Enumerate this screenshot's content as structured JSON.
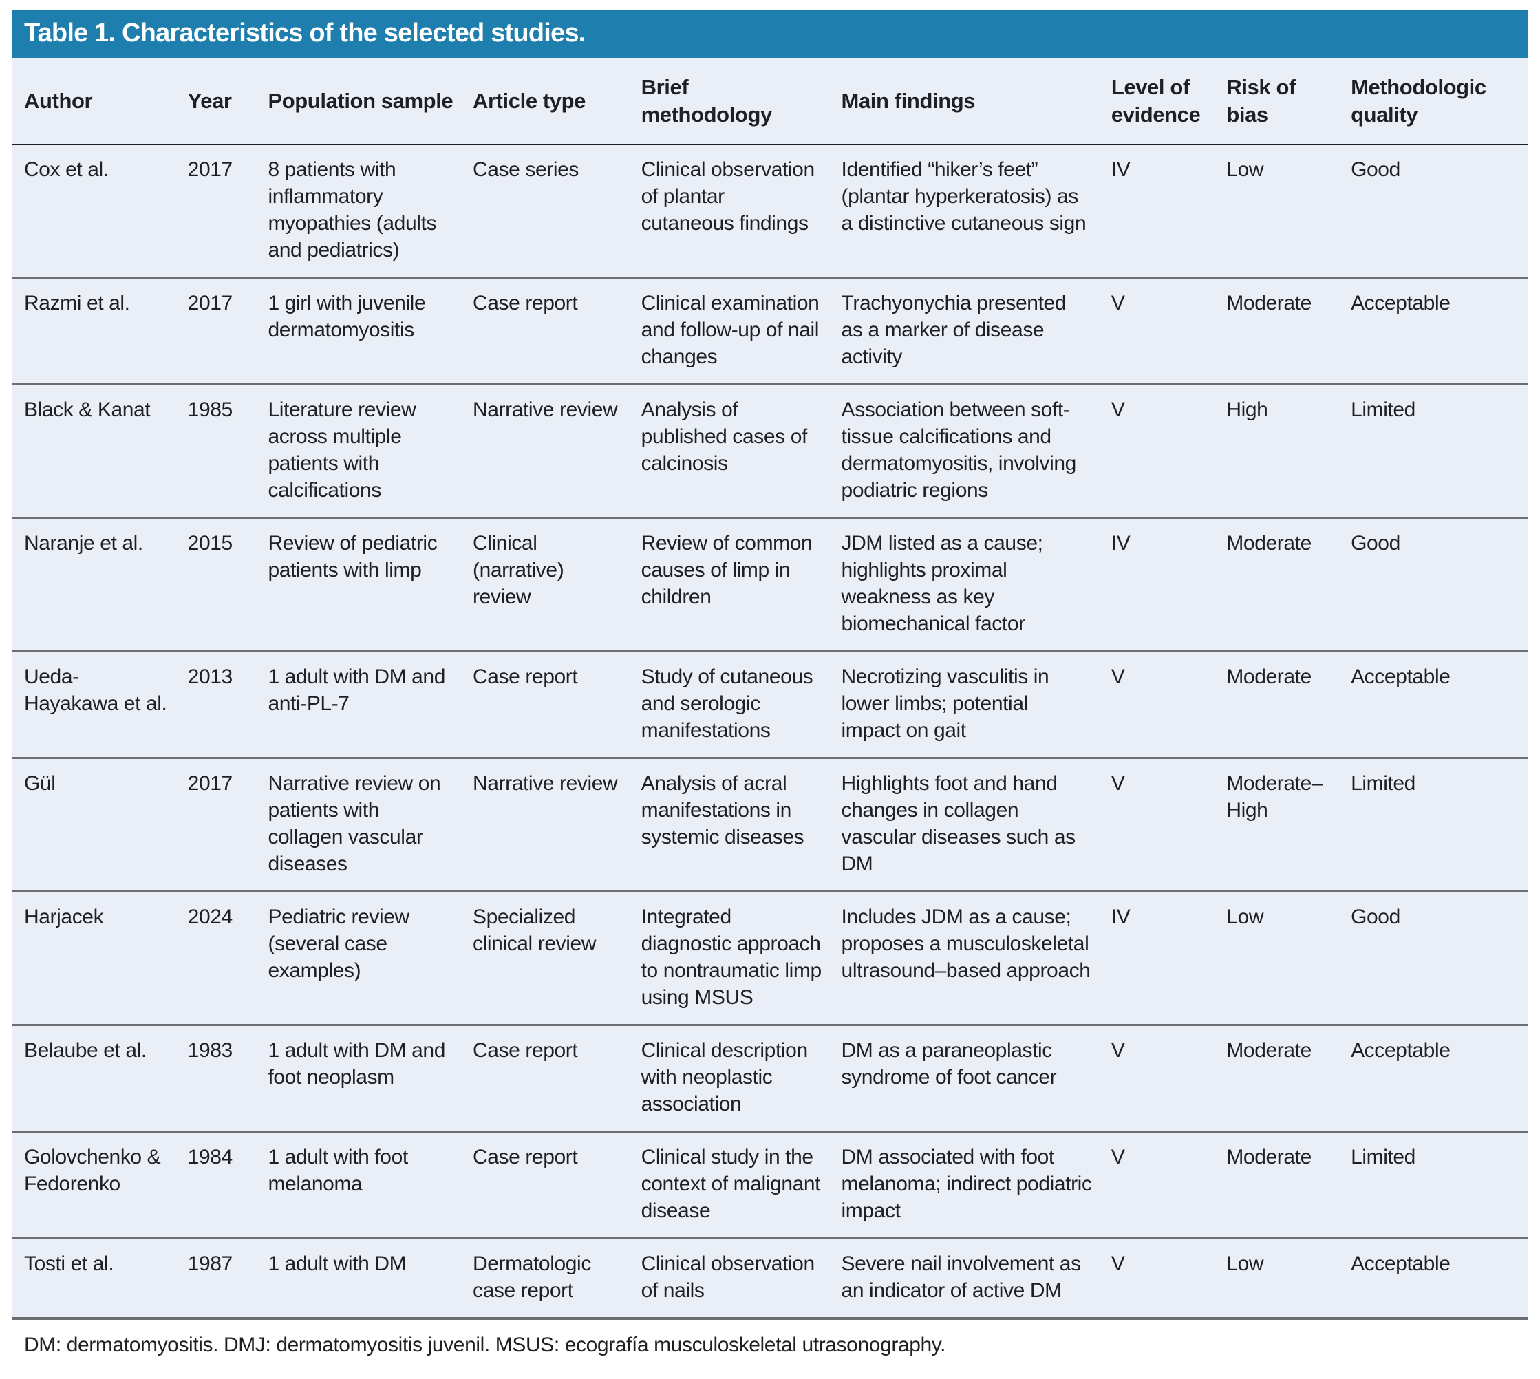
{
  "title": "Table 1. Characteristics of the selected studies.",
  "colors": {
    "title_bar_bg": "#1e7ead",
    "title_text": "#ffffff",
    "table_bg": "#e9eef7",
    "text": "#1f2023",
    "row_divider": "#6d6e71",
    "header_divider": "#231f20"
  },
  "table": {
    "columns": [
      "Author",
      "Year",
      "Population sample",
      "Article type",
      "Brief methodology",
      "Main findings",
      "Level of evidence",
      "Risk of bias",
      "Methodologic quality"
    ],
    "rows": [
      {
        "author": "Cox et al.",
        "year": "2017",
        "population": "8 patients with inflammatory myopathies (adults and pediatrics)",
        "article_type": "Case series",
        "methodology": "Clinical observation of plantar cutaneous findings",
        "findings": "Identified “hiker’s feet” (plantar hyperkeratosis) as a distinctive cutaneous sign",
        "evidence": "IV",
        "bias": "Low",
        "quality": "Good"
      },
      {
        "author": "Razmi et al.",
        "year": "2017",
        "population": "1 girl with juvenile dermatomyositis",
        "article_type": "Case report",
        "methodology": "Clinical examination and follow-up of nail changes",
        "findings": "Trachyonychia presented as a marker of disease activity",
        "evidence": "V",
        "bias": "Moderate",
        "quality": "Acceptable"
      },
      {
        "author": "Black & Kanat",
        "year": "1985",
        "population": "Literature review across multiple patients with calcifications",
        "article_type": "Narrative review",
        "methodology": "Analysis of published cases of calcinosis",
        "findings": "Association between soft-tissue calcifications and dermatomyositis, involving podiatric regions",
        "evidence": "V",
        "bias": "High",
        "quality": "Limited"
      },
      {
        "author": "Naranje et al.",
        "year": "2015",
        "population": "Review of pediatric patients with limp",
        "article_type": "Clinical (narrative) review",
        "methodology": "Review of common causes of limp in children",
        "findings": "JDM listed as a cause; highlights proximal weakness as key biomechanical factor",
        "evidence": "IV",
        "bias": "Moderate",
        "quality": "Good"
      },
      {
        "author": "Ueda-Hayakawa et al.",
        "year": "2013",
        "population": "1 adult with DM and anti-PL-7",
        "article_type": "Case report",
        "methodology": "Study of cutaneous and serologic manifestations",
        "findings": "Necrotizing vasculitis in lower limbs; potential impact on gait",
        "evidence": "V",
        "bias": "Moderate",
        "quality": "Acceptable"
      },
      {
        "author": "Gül",
        "year": "2017",
        "population": "Narrative review on patients with collagen vascular diseases",
        "article_type": "Narrative review",
        "methodology": "Analysis of acral manifestations in systemic diseases",
        "findings": "Highlights foot and hand changes in collagen vascular diseases such as DM",
        "evidence": "V",
        "bias": "Moderate–High",
        "quality": "Limited"
      },
      {
        "author": "Harjacek",
        "year": "2024",
        "population": "Pediatric review (several case examples)",
        "article_type": "Specialized clinical review",
        "methodology": "Integrated diagnostic approach to nontraumatic limp using MSUS",
        "findings": "Includes JDM as a cause; proposes a musculoskeletal ultrasound–based approach",
        "evidence": "IV",
        "bias": "Low",
        "quality": "Good"
      },
      {
        "author": "Belaube et al.",
        "year": "1983",
        "population": "1 adult with DM and foot neoplasm",
        "article_type": "Case report",
        "methodology": "Clinical description with neoplastic association",
        "findings": "DM as a paraneoplastic syndrome of foot cancer",
        "evidence": "V",
        "bias": "Moderate",
        "quality": "Acceptable"
      },
      {
        "author": "Golovchenko & Fedorenko",
        "year": "1984",
        "population": "1 adult with foot melanoma",
        "article_type": "Case report",
        "methodology": "Clinical study in the context of malignant disease",
        "findings": "DM associated with foot melanoma; indirect podiatric impact",
        "evidence": "V",
        "bias": "Moderate",
        "quality": "Limited"
      },
      {
        "author": "Tosti et al.",
        "year": "1987",
        "population": "1 adult with DM",
        "article_type": "Dermatologic case report",
        "methodology": "Clinical observation of nails",
        "findings": "Severe nail involvement as an indicator of active DM",
        "evidence": "V",
        "bias": "Low",
        "quality": "Acceptable"
      }
    ]
  },
  "footnote": "DM: dermatomyositis. DMJ: dermatomyositis juvenil. MSUS: ecografía musculoskeletal utrasonography."
}
